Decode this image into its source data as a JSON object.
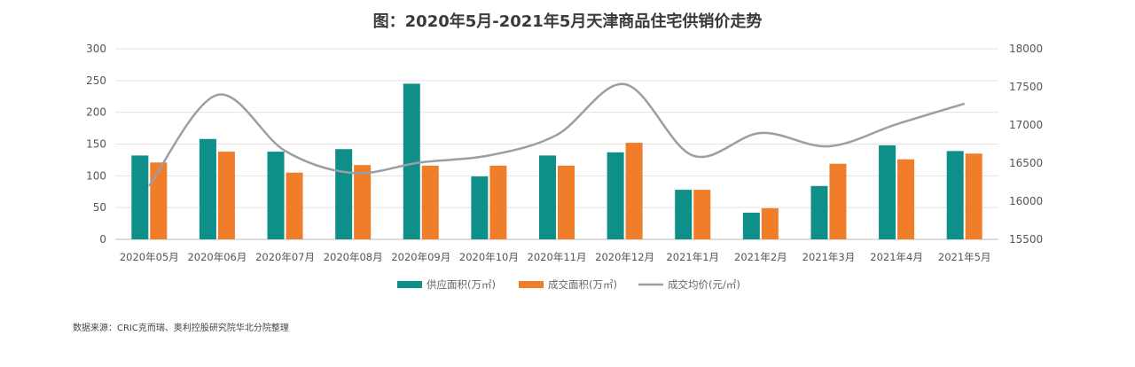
{
  "chart_data": {
    "type": "bar+line",
    "title": "图：2020年5月-2021年5月天津商品住宅供销价走势",
    "source": "数据来源：CRIC克而瑞、奥利控股研究院华北分院整理",
    "categories": [
      "2020年05月",
      "2020年06月",
      "2020年07月",
      "2020年08月",
      "2020年09月",
      "2020年10月",
      "2020年11月",
      "2020年12月",
      "2021年1月",
      "2021年2月",
      "2021年3月",
      "2021年4月",
      "2021年5月"
    ],
    "ylim": [
      0,
      300
    ],
    "yticks": [
      0,
      50,
      100,
      150,
      200,
      250,
      300
    ],
    "y2lim": [
      15500,
      18000
    ],
    "y2ticks": [
      15500,
      16000,
      16500,
      17000,
      17500,
      18000
    ],
    "legend_position": "bottom",
    "grid": true,
    "series": [
      {
        "name": "供应面积(万㎡)",
        "type": "bar",
        "axis": "left",
        "color": "#0f8f8a",
        "values": [
          132,
          158,
          138,
          142,
          245,
          99,
          132,
          137,
          78,
          42,
          84,
          148,
          139
        ]
      },
      {
        "name": "成交面积(万㎡)",
        "type": "bar",
        "axis": "left",
        "color": "#f07d2a",
        "values": [
          121,
          138,
          105,
          117,
          116,
          116,
          116,
          152,
          78,
          49,
          119,
          126,
          135
        ]
      },
      {
        "name": "成交均价(元/㎡)",
        "type": "line",
        "axis": "right",
        "color": "#9a9ea6",
        "values": [
          16200,
          17395,
          16660,
          16370,
          16510,
          16600,
          16870,
          17535,
          16600,
          16895,
          16720,
          17010,
          17280
        ]
      }
    ]
  }
}
